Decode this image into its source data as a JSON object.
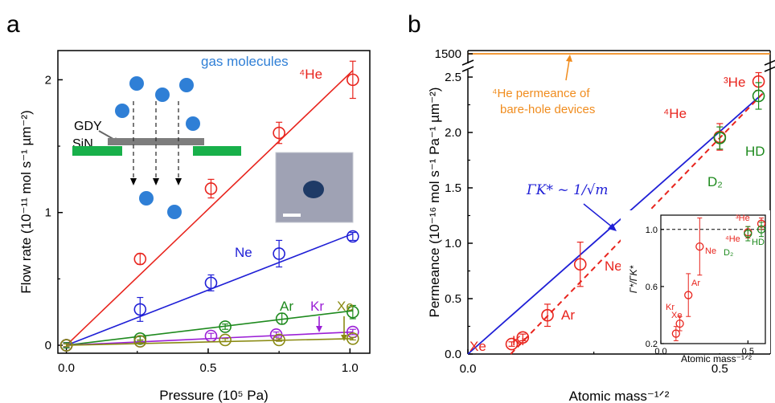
{
  "colors": {
    "he": "#e8241d",
    "ne": "#1f1fd6",
    "ar": "#1e8a1e",
    "kr": "#9b1fd6",
    "xe": "#8a8a12",
    "sin": "#18b04a",
    "gdy": "#7d7d7d",
    "molecule": "#2f7fd6",
    "orange": "#f08c1e",
    "fit_b": "#1f1fd6",
    "fit_b_dashed": "#e8241d"
  },
  "chart_data": [
    {
      "panel": "a",
      "type": "scatter",
      "xlabel": "Pressure (10⁵ Pa)",
      "ylabel": "Flow rate (10⁻¹¹ mol s⁻¹ µm⁻²)",
      "xlim": [
        -0.03,
        1.07
      ],
      "ylim": [
        -0.06,
        2.22
      ],
      "xticks": [
        "0.0",
        "0.5",
        "1.0"
      ],
      "yticks": [
        "0",
        "1",
        "2"
      ],
      "series": [
        {
          "name": "⁴He",
          "color_key": "he",
          "x": [
            0.0,
            0.26,
            0.51,
            0.75,
            1.01
          ],
          "y": [
            0.0,
            0.65,
            1.18,
            1.6,
            2.0
          ],
          "err": [
            0.02,
            0.04,
            0.07,
            0.08,
            0.14
          ],
          "fit": [
            [
              0.0,
              0.0
            ],
            [
              1.01,
              2.07
            ]
          ]
        },
        {
          "name": "Ne",
          "color_key": "ne",
          "x": [
            0.0,
            0.26,
            0.51,
            0.75,
            1.01
          ],
          "y": [
            0.0,
            0.27,
            0.47,
            0.69,
            0.82
          ],
          "err": [
            0.02,
            0.09,
            0.06,
            0.1,
            0.03
          ],
          "fit": [
            [
              0.0,
              0.0
            ],
            [
              1.01,
              0.84
            ]
          ]
        },
        {
          "name": "Ar",
          "color_key": "ar",
          "x": [
            0.0,
            0.26,
            0.56,
            0.76,
            1.01
          ],
          "y": [
            0.0,
            0.05,
            0.14,
            0.2,
            0.25
          ],
          "err": [
            0.02,
            0.02,
            0.02,
            0.04,
            0.05
          ],
          "fit": [
            [
              0.0,
              0.0
            ],
            [
              1.01,
              0.26
            ]
          ]
        },
        {
          "name": "Kr",
          "color_key": "kr",
          "x": [
            0.0,
            0.26,
            0.51,
            0.74,
            1.01
          ],
          "y": [
            0.0,
            0.03,
            0.07,
            0.08,
            0.1
          ],
          "err": [
            0.01,
            0.01,
            0.02,
            0.02,
            0.02
          ],
          "fit": [
            [
              0.0,
              0.0
            ],
            [
              1.01,
              0.1
            ]
          ]
        },
        {
          "name": "Xe",
          "color_key": "xe",
          "x": [
            0.0,
            0.26,
            0.56,
            0.75,
            1.01
          ],
          "y": [
            0.0,
            0.03,
            0.04,
            0.04,
            0.05
          ],
          "err": [
            0.01,
            0.01,
            0.01,
            0.01,
            0.01
          ],
          "fit": [
            [
              0.0,
              0.0
            ],
            [
              1.01,
              0.05
            ]
          ]
        }
      ]
    },
    {
      "panel": "b",
      "type": "scatter",
      "xlabel": "Atomic mass⁻¹ᐟ²",
      "ylabel": "Permeance (10⁻¹⁶ mol s⁻¹ Pa⁻¹ µm⁻²)",
      "xlim": [
        0.0,
        0.6
      ],
      "ylim": [
        0.0,
        2.5
      ],
      "axis_break": {
        "upper_tick": "1500"
      },
      "xticks": [
        "0.0",
        "0.5"
      ],
      "yticks": [
        "0.0",
        "0.5",
        "1.0",
        "1.5",
        "2.0",
        "2.5"
      ],
      "series": [
        {
          "name": "Xe",
          "color_key": "he",
          "x": [
            0.087
          ],
          "y": [
            0.09
          ],
          "err": [
            0.02
          ]
        },
        {
          "name": "Kr",
          "color_key": "he",
          "x": [
            0.109
          ],
          "y": [
            0.15
          ],
          "err": [
            0.03
          ]
        },
        {
          "name": "Ar",
          "color_key": "he",
          "x": [
            0.158
          ],
          "y": [
            0.35
          ],
          "err": [
            0.1
          ]
        },
        {
          "name": "Ne",
          "color_key": "he",
          "x": [
            0.223
          ],
          "y": [
            0.81
          ],
          "err": [
            0.2
          ]
        },
        {
          "name": "⁴He",
          "color_key": "he",
          "x": [
            0.5
          ],
          "y": [
            1.96
          ],
          "err": [
            0.12
          ]
        },
        {
          "name": "³He",
          "color_key": "he",
          "x": [
            0.577
          ],
          "y": [
            2.46
          ],
          "err": [
            0.08
          ]
        },
        {
          "name": "D₂",
          "color_key": "ar",
          "x": [
            0.5
          ],
          "y": [
            1.95
          ],
          "err": [
            0.1
          ]
        },
        {
          "name": "HD",
          "color_key": "ar",
          "x": [
            0.577
          ],
          "y": [
            2.33
          ],
          "err": [
            0.12
          ]
        }
      ],
      "fit_solid": [
        [
          0.0,
          0.0
        ],
        [
          0.585,
          2.35
        ]
      ],
      "fit_dashed": [
        [
          0.085,
          0.0
        ],
        [
          0.585,
          2.35
        ]
      ]
    },
    {
      "panel": "b-inset",
      "type": "scatter",
      "xlabel": "Atomic mass⁻¹ᐟ²",
      "xlim": [
        0.0,
        0.6
      ],
      "ylim": [
        0.2,
        1.1
      ],
      "xticks": [
        "0.0",
        "0.5"
      ],
      "yticks": [
        "0.2",
        "0.6",
        "1.0"
      ],
      "reference_line": 1.0,
      "series": [
        {
          "name": "Xe",
          "color_key": "he",
          "x": [
            0.087
          ],
          "y": [
            0.27
          ],
          "err": [
            0.05
          ]
        },
        {
          "name": "Kr",
          "color_key": "he",
          "x": [
            0.109
          ],
          "y": [
            0.34
          ],
          "err": [
            0.05
          ]
        },
        {
          "name": "Ar",
          "color_key": "he",
          "x": [
            0.158
          ],
          "y": [
            0.54
          ],
          "err": [
            0.15
          ]
        },
        {
          "name": "Ne",
          "color_key": "he",
          "x": [
            0.223
          ],
          "y": [
            0.88
          ],
          "err": [
            0.2
          ]
        },
        {
          "name": "⁴He",
          "color_key": "he",
          "x": [
            0.5
          ],
          "y": [
            0.98
          ],
          "err": [
            0.04
          ]
        },
        {
          "name": "³He",
          "color_key": "he",
          "x": [
            0.577
          ],
          "y": [
            1.04
          ],
          "err": [
            0.04
          ]
        },
        {
          "name": "D₂",
          "color_key": "ar",
          "x": [
            0.5
          ],
          "y": [
            0.97
          ],
          "err": [
            0.05
          ]
        },
        {
          "name": "HD",
          "color_key": "ar",
          "x": [
            0.577
          ],
          "y": [
            1.0
          ],
          "err": [
            0.05
          ]
        }
      ]
    }
  ],
  "panel_a": {
    "label": "a",
    "schematic": {
      "molecules_label": "gas molecules",
      "gdy_label": "GDY",
      "sin_label": "SiN"
    },
    "labels": {
      "he": "⁴He",
      "ne": "Ne",
      "ar": "Ar",
      "kr": "Kr",
      "xe": "Xe"
    }
  },
  "panel_b": {
    "label": "b",
    "upper_tick": "1500",
    "annotation": [
      "⁴He permeance of",
      "bare-hole devices"
    ],
    "fit_label": "ΓK* ~ 1/√m",
    "point_labels": {
      "xe": "Xe",
      "kr": "Kr",
      "ar": "Ar",
      "ne": "Ne",
      "he4": "⁴He",
      "he3": "³He",
      "d2": "D₂",
      "hd": "HD"
    },
    "inset": {
      "xlabel": "Atomic mass⁻¹ᐟ²",
      "ylabel": "Γ*/ΓK*",
      "point_labels": {
        "xe": "Xe",
        "kr": "Kr",
        "ar": "Ar",
        "ne": "Ne",
        "he4": "⁴He",
        "he3": "³He",
        "d2": "D₂",
        "hd": "HD"
      }
    }
  }
}
